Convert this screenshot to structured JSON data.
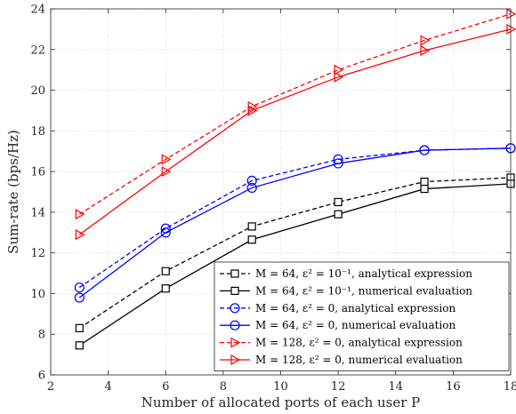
{
  "chart_data": {
    "type": "line",
    "xlabel": "Number of allocated ports of each user P",
    "ylabel": "Sum-rate (bps/Hz)",
    "xlim": [
      2,
      18
    ],
    "ylim": [
      6,
      24
    ],
    "xticks": [
      2,
      4,
      6,
      8,
      10,
      12,
      14,
      16,
      18
    ],
    "yticks": [
      6,
      8,
      10,
      12,
      14,
      16,
      18,
      20,
      22,
      24
    ],
    "grid": true,
    "legend_position": "bottom-right",
    "x": [
      3,
      6,
      9,
      12,
      15,
      18
    ],
    "series": [
      {
        "name": "M = 64, ε² = 10⁻¹, analytical expression",
        "values": [
          8.3,
          11.1,
          13.3,
          14.5,
          15.5,
          15.7
        ],
        "color": "#000000",
        "dashed": true,
        "marker": "square"
      },
      {
        "name": "M = 64, ε² = 10⁻¹, numerical evaluation",
        "values": [
          7.45,
          10.25,
          12.65,
          13.9,
          15.15,
          15.4
        ],
        "color": "#000000",
        "dashed": false,
        "marker": "square"
      },
      {
        "name": "M = 64, ε² = 0, analytical expression",
        "values": [
          10.3,
          13.2,
          15.55,
          16.6,
          17.05,
          17.15
        ],
        "color": "#0000ff",
        "dashed": true,
        "marker": "circle"
      },
      {
        "name": "M = 64, ε² = 0, numerical evaluation",
        "values": [
          9.8,
          13.0,
          15.2,
          16.4,
          17.05,
          17.15
        ],
        "color": "#0000ff",
        "dashed": false,
        "marker": "circle"
      },
      {
        "name": "M = 128, ε² = 0, analytical expression",
        "values": [
          13.9,
          16.6,
          19.2,
          21.0,
          22.45,
          23.75
        ],
        "color": "#ff0000",
        "dashed": true,
        "marker": "triangle-right"
      },
      {
        "name": "M = 128, ε² = 0, numerical evaluation",
        "values": [
          12.9,
          16.0,
          19.0,
          20.65,
          21.95,
          23.0
        ],
        "color": "#ff0000",
        "dashed": false,
        "marker": "triangle-right"
      }
    ]
  }
}
